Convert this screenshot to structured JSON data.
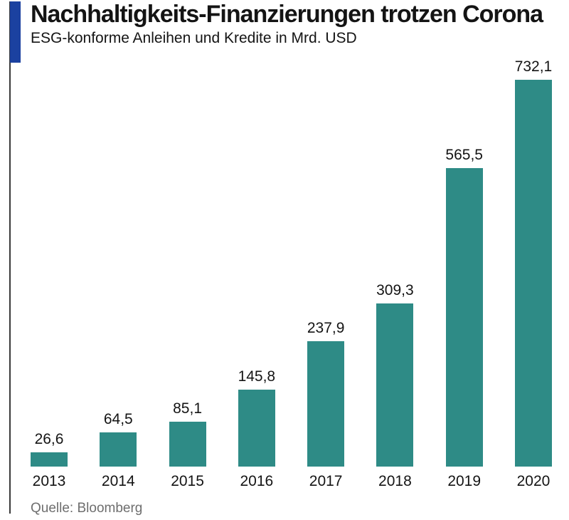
{
  "header": {
    "title": "Nachhaltigkeits-Finanzierungen trotzen Corona",
    "subtitle": "ESG-konforme Anleihen und Kredite in Mrd. USD"
  },
  "chart_data": {
    "type": "bar",
    "title": "Nachhaltigkeits-Finanzierungen trotzen Corona",
    "subtitle": "ESG-konforme Anleihen und Kredite in Mrd. USD",
    "categories": [
      "2013",
      "2014",
      "2015",
      "2016",
      "2017",
      "2018",
      "2019",
      "2020"
    ],
    "values": [
      26.6,
      64.5,
      85.1,
      145.8,
      237.9,
      309.3,
      565.5,
      732.1
    ],
    "value_labels": [
      "26,6",
      "64,5",
      "85,1",
      "145,8",
      "237,9",
      "309,3",
      "565,5",
      "732,1"
    ],
    "xlabel": "",
    "ylabel": "Mrd. USD",
    "ylim": [
      0,
      732.1
    ],
    "grid": false,
    "legend": false,
    "data_labels_position": "above-bars"
  },
  "footer": {
    "source": "Quelle: Bloomberg"
  },
  "colors": {
    "bar": "#2e8b86",
    "accent": "#1b41a0",
    "rule": "#3a3a3a",
    "text": "#141414",
    "source_text": "#6e6e6e",
    "background": "#ffffff"
  }
}
